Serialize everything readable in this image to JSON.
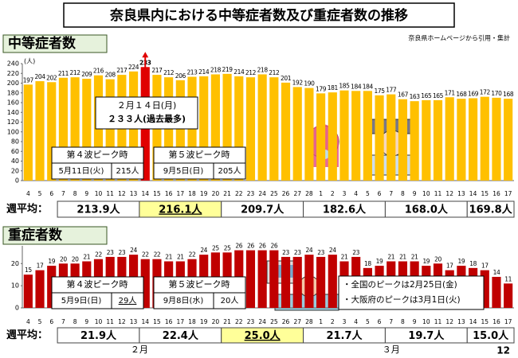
{
  "title": "奈良県内における中等症者数及び重症者数の推移",
  "source": "奈良県ホームページから引用・集計",
  "page_number": "12",
  "chart_data": [
    {
      "type": "bar",
      "title": "中等症者数",
      "y_label": "(人)",
      "color": "#ffc000",
      "peak_color": "#e00000",
      "categories": [
        "4",
        "5",
        "6",
        "7",
        "8",
        "9",
        "10",
        "11",
        "12",
        "13",
        "14",
        "15",
        "16",
        "17",
        "18",
        "19",
        "20",
        "21",
        "22",
        "23",
        "24",
        "25",
        "26",
        "27",
        "28",
        "1",
        "2",
        "3",
        "4",
        "5",
        "6",
        "7",
        "8",
        "9",
        "10",
        "11",
        "12",
        "13",
        "14",
        "15",
        "16",
        "17"
      ],
      "values": [
        197,
        204,
        202,
        211,
        212,
        209,
        216,
        208,
        217,
        224,
        233,
        217,
        212,
        206,
        213,
        214,
        218,
        219,
        214,
        212,
        218,
        212,
        201,
        192,
        190,
        179,
        181,
        185,
        184,
        184,
        175,
        177,
        167,
        163,
        165,
        165,
        171,
        168,
        169,
        172,
        170,
        168
      ],
      "ylim": [
        0,
        240
      ],
      "yticks": [
        0,
        20,
        40,
        60,
        80,
        100,
        120,
        140,
        160,
        180,
        200,
        220,
        240
      ],
      "grid": false,
      "weekly_average": {
        "label": "週平均：",
        "values": [
          "213.9人",
          "216.1人",
          "209.7人",
          "182.6人",
          "168.0人",
          "169.8人"
        ]
      },
      "callout": {
        "date": "２月１４日(月)",
        "note": "２３３人(過去最多)"
      },
      "peak_boxes": [
        {
          "title": "第４波ピーク時",
          "date": "5月11日(火)",
          "count": "215人"
        },
        {
          "title": "第５波ピーク時",
          "date": "9月5日(日)",
          "count": "205人"
        }
      ]
    },
    {
      "type": "bar",
      "title": "重症者数",
      "color": "#c00000",
      "categories": [
        "4",
        "5",
        "6",
        "7",
        "8",
        "9",
        "10",
        "11",
        "12",
        "13",
        "14",
        "15",
        "16",
        "17",
        "18",
        "19",
        "20",
        "21",
        "22",
        "23",
        "24",
        "25",
        "26",
        "27",
        "28",
        "1",
        "2",
        "3",
        "4",
        "5",
        "6",
        "7",
        "8",
        "9",
        "10",
        "11",
        "12",
        "13",
        "14",
        "15",
        "16",
        "17"
      ],
      "values": [
        15,
        17,
        19,
        20,
        20,
        21,
        22,
        23,
        23,
        24,
        22,
        22,
        21,
        21,
        22,
        24,
        25,
        25,
        26,
        26,
        26,
        26,
        23,
        23,
        24,
        23,
        24,
        21,
        23,
        18,
        19,
        21,
        21,
        21,
        19,
        20,
        17,
        19,
        18,
        17,
        14,
        11
      ],
      "ylim": [
        0,
        28
      ],
      "yticks": [
        0,
        10,
        20
      ],
      "grid": false,
      "weekly_average": {
        "label": "週平均：",
        "values": [
          "21.9人",
          "22.4人",
          "25.0人",
          "21.7人",
          "19.7人",
          "15.0人"
        ]
      },
      "months": [
        "２月",
        "３月"
      ],
      "peak_boxes": [
        {
          "title": "第４波ピーク時",
          "date": "5月9日(日)",
          "count": "29人"
        },
        {
          "title": "第５波ピーク時",
          "date": "9月8日(水)",
          "count": "20人"
        }
      ],
      "notes": [
        "・全国のピークは2月25日(金)",
        "・大阪府のピークは3月1日(火)"
      ]
    }
  ]
}
